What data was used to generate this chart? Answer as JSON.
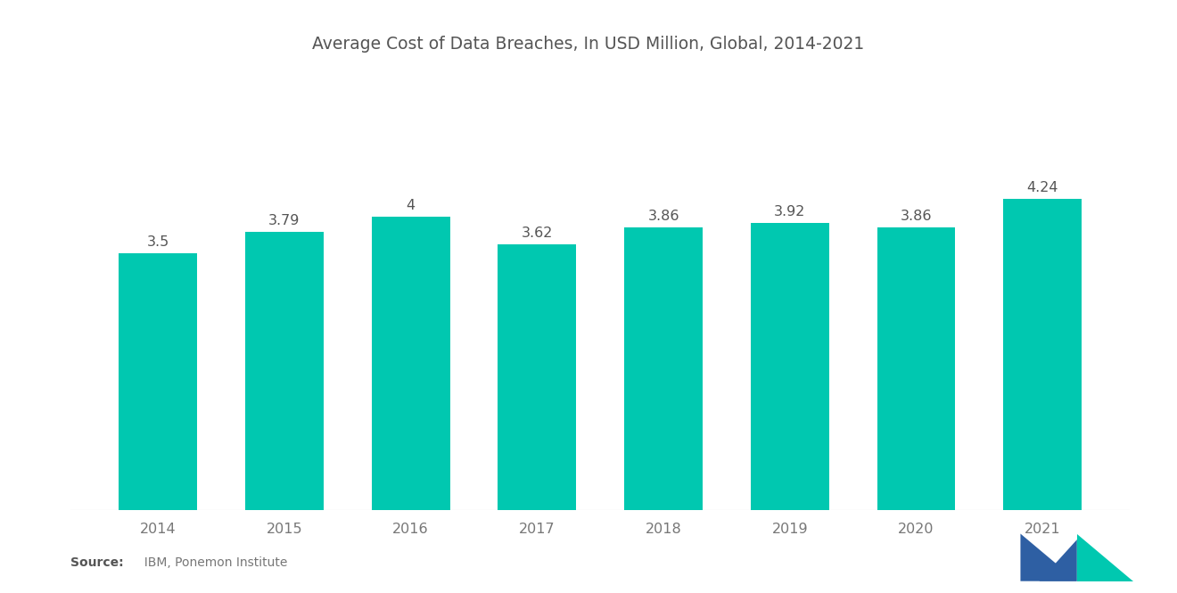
{
  "title": "Average Cost of Data Breaches, In USD Million, Global, 2014-2021",
  "years": [
    "2014",
    "2015",
    "2016",
    "2017",
    "2018",
    "2019",
    "2020",
    "2021"
  ],
  "values": [
    3.5,
    3.79,
    4.0,
    3.62,
    3.86,
    3.92,
    3.86,
    4.24
  ],
  "bar_color": "#00C8B0",
  "bar_labels": [
    "3.5",
    "3.79",
    "4",
    "3.62",
    "3.86",
    "3.92",
    "3.86",
    "4.24"
  ],
  "background_color": "#FFFFFF",
  "title_fontsize": 13.5,
  "label_fontsize": 11.5,
  "tick_fontsize": 11.5,
  "source_bold": "Source:",
  "source_normal": "  IBM, Ponemon Institute",
  "ylim": [
    0,
    5.5
  ],
  "bar_width": 0.62,
  "label_color": "#555555",
  "tick_color": "#777777",
  "logo_blue": "#2E5FA3",
  "logo_teal": "#00C8B0"
}
